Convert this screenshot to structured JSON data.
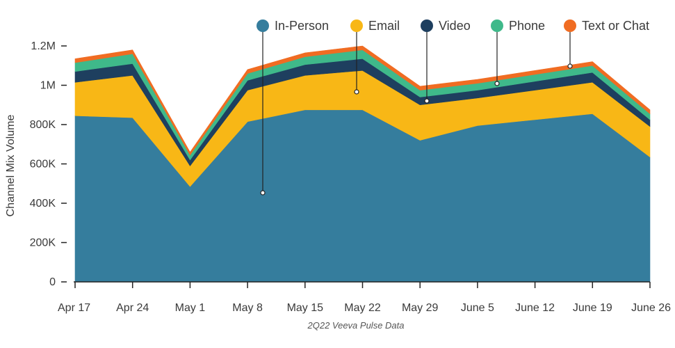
{
  "chart_data": {
    "type": "area",
    "stacked": true,
    "caption": "2Q22 Veeva Pulse Data",
    "ylabel": "Channel Mix Volume",
    "xlabel": "",
    "ylim": [
      0,
      1200000
    ],
    "y_ticks": [
      {
        "value": 0,
        "label": "0"
      },
      {
        "value": 200000,
        "label": "200K"
      },
      {
        "value": 400000,
        "label": "400K"
      },
      {
        "value": 600000,
        "label": "600K"
      },
      {
        "value": 800000,
        "label": "800K"
      },
      {
        "value": 1000000,
        "label": "1M"
      },
      {
        "value": 1200000,
        "label": "1.2M"
      }
    ],
    "categories": [
      "Apr 17",
      "Apr 24",
      "May 1",
      "May 8",
      "May 15",
      "May 22",
      "May 29",
      "June 5",
      "June 12",
      "June 19",
      "June 26"
    ],
    "series": [
      {
        "name": "In-Person",
        "color": "#357d9d",
        "values": [
          845000,
          835000,
          485000,
          815000,
          875000,
          875000,
          720000,
          795000,
          825000,
          855000,
          635000
        ]
      },
      {
        "name": "Email",
        "color": "#f8b716",
        "values": [
          170000,
          215000,
          105000,
          160000,
          175000,
          200000,
          180000,
          140000,
          150000,
          160000,
          155000
        ]
      },
      {
        "name": "Video",
        "color": "#1e3f5f",
        "values": [
          55000,
          60000,
          30000,
          50000,
          55000,
          60000,
          40000,
          40000,
          45000,
          50000,
          35000
        ]
      },
      {
        "name": "Phone",
        "color": "#3fb98a",
        "values": [
          45000,
          50000,
          25000,
          35000,
          40000,
          45000,
          35000,
          35000,
          35000,
          35000,
          30000
        ]
      },
      {
        "name": "Text or Chat",
        "color": "#f06c22",
        "values": [
          20000,
          20000,
          15000,
          20000,
          20000,
          20000,
          20000,
          20000,
          20000,
          20000,
          20000
        ]
      }
    ],
    "legend_position": "top-right",
    "grid": false
  }
}
